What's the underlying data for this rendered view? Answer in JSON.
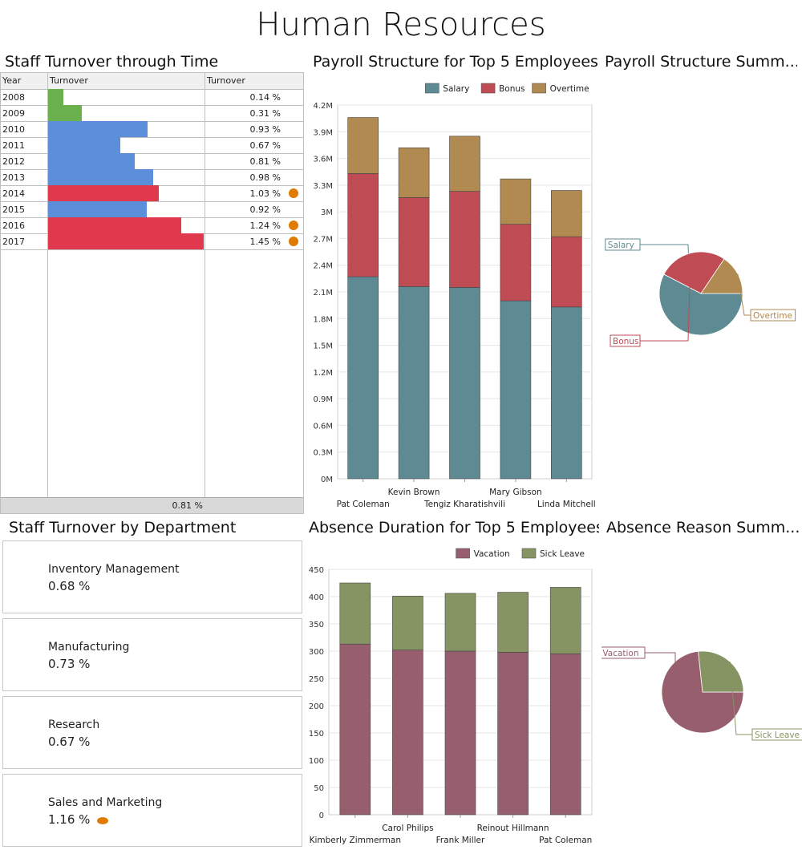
{
  "dashboard": {
    "title": "Human Resources"
  },
  "turnover_grid": {
    "title": "Staff Turnover through Time",
    "headers": {
      "year": "Year",
      "bar": "Turnover",
      "value": "Turnover"
    },
    "rows": [
      {
        "year": "2008",
        "value": "0.14 %",
        "fraction": 0.097,
        "color": "#6ab04c",
        "flag": false
      },
      {
        "year": "2009",
        "value": "0.31 %",
        "fraction": 0.214,
        "color": "#6ab04c",
        "flag": false
      },
      {
        "year": "2010",
        "value": "0.93 %",
        "fraction": 0.641,
        "color": "#5b8fd9",
        "flag": false
      },
      {
        "year": "2011",
        "value": "0.67 %",
        "fraction": 0.462,
        "color": "#5b8fd9",
        "flag": false
      },
      {
        "year": "2012",
        "value": "0.81 %",
        "fraction": 0.559,
        "color": "#5b8fd9",
        "flag": false
      },
      {
        "year": "2013",
        "value": "0.98 %",
        "fraction": 0.676,
        "color": "#5b8fd9",
        "flag": false
      },
      {
        "year": "2014",
        "value": "1.03 %",
        "fraction": 0.71,
        "color": "#e0394d",
        "flag": true
      },
      {
        "year": "2015",
        "value": "0.92 %",
        "fraction": 0.634,
        "color": "#5b8fd9",
        "flag": false
      },
      {
        "year": "2016",
        "value": "1.24 %",
        "fraction": 0.855,
        "color": "#e0394d",
        "flag": true
      },
      {
        "year": "2017",
        "value": "1.45 %",
        "fraction": 1.0,
        "color": "#e0394d",
        "flag": true
      }
    ],
    "total": "0.81 %",
    "flag_color": "#e07b00"
  },
  "department_cards": {
    "title": "Staff Turnover by Department",
    "cards": [
      {
        "name": "Inventory Management",
        "value": "0.68 %",
        "flag": false
      },
      {
        "name": "Manufacturing",
        "value": "0.73 %",
        "flag": false
      },
      {
        "name": "Research",
        "value": "0.67 %",
        "flag": false
      },
      {
        "name": "Sales and Marketing",
        "value": "1.16 %",
        "flag": true
      }
    ]
  },
  "panel_titles": {
    "payroll": "Payroll Structure for Top 5 Employees",
    "payroll_summary": "Payroll Structure Summ...",
    "absence": "Absence Duration for Top 5 Employees",
    "absence_summary": "Absence Reason Summ..."
  },
  "chart_data": [
    {
      "id": "payroll",
      "type": "bar",
      "stacked": true,
      "categories": [
        "Pat Coleman",
        "Kevin Brown",
        "Tengiz Kharatishvili",
        "Mary Gibson",
        "Linda Mitchell"
      ],
      "series": [
        {
          "name": "Salary",
          "color": "#5e8b93",
          "values": [
            2270000,
            2160000,
            2150000,
            2000000,
            1930000
          ]
        },
        {
          "name": "Bonus",
          "color": "#bf4b55",
          "values": [
            1160000,
            1000000,
            1080000,
            860000,
            790000
          ]
        },
        {
          "name": "Overtime",
          "color": "#b08a50",
          "values": [
            630000,
            560000,
            620000,
            510000,
            520000
          ]
        }
      ],
      "y_ticks": [
        "0M",
        "0.3M",
        "0.6M",
        "0.9M",
        "1.2M",
        "1.5M",
        "1.8M",
        "2.1M",
        "2.4M",
        "2.7M",
        "3M",
        "3.3M",
        "3.6M",
        "3.9M",
        "4.2M"
      ],
      "ylim": [
        0,
        4200000
      ],
      "legend": "top-right",
      "grid": true
    },
    {
      "id": "payroll_summary",
      "type": "pie",
      "labels": [
        "Salary",
        "Bonus",
        "Overtime"
      ],
      "values": [
        10510000,
        4890000,
        2840000
      ],
      "colors": [
        "#5e8b93",
        "#bf4b55",
        "#b08a50"
      ]
    },
    {
      "id": "absence",
      "type": "bar",
      "stacked": true,
      "categories": [
        "Kimberly Zimmerman",
        "Carol Philips",
        "Frank Miller",
        "Reinout Hillmann",
        "Pat Coleman"
      ],
      "series": [
        {
          "name": "Vacation",
          "color": "#975e6e",
          "values": [
            313,
            302,
            300,
            298,
            295
          ]
        },
        {
          "name": "Sick Leave",
          "color": "#869463",
          "values": [
            112,
            99,
            106,
            110,
            122
          ]
        }
      ],
      "y_ticks": [
        "0",
        "50",
        "100",
        "150",
        "200",
        "250",
        "300",
        "350",
        "400",
        "450"
      ],
      "ylim": [
        0,
        450
      ],
      "legend": "top-right",
      "grid": true
    },
    {
      "id": "absence_summary",
      "type": "pie",
      "labels": [
        "Vacation",
        "Sick Leave"
      ],
      "values": [
        1508,
        549
      ],
      "colors": [
        "#975e6e",
        "#869463"
      ]
    }
  ]
}
